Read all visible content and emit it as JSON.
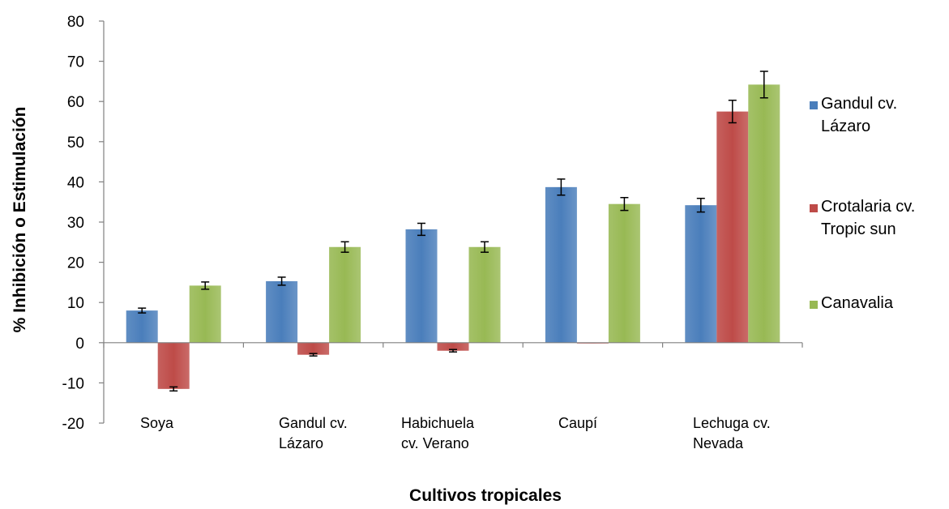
{
  "chart_data": {
    "type": "bar",
    "title": "",
    "xlabel": "Cultivos tropicales",
    "ylabel": "% Inhibición o Estimulación",
    "ylim": [
      -20,
      80
    ],
    "yticks": [
      -20,
      -10,
      0,
      10,
      20,
      30,
      40,
      50,
      60,
      70,
      80
    ],
    "grid": false,
    "legend_position": "right",
    "categories": [
      [
        "Soya"
      ],
      [
        "Gandul cv.",
        "Lázaro"
      ],
      [
        "Habichuela",
        "cv. Verano"
      ],
      [
        "Caupí"
      ],
      [
        "Lechuga cv.",
        "Nevada"
      ]
    ],
    "series": [
      {
        "name": [
          "Gandul cv.",
          "Lázaro"
        ],
        "color": "#4a7ebb",
        "values": [
          8,
          15.3,
          28.2,
          38.7,
          34.2
        ],
        "errors": [
          0.6,
          1.0,
          1.5,
          2.0,
          1.7
        ]
      },
      {
        "name": [
          "Crotalaria cv.",
          "Tropic sun"
        ],
        "color": "#be4b48",
        "values": [
          -11.5,
          -3,
          -2,
          0,
          57.5
        ],
        "errors": [
          0.5,
          0.3,
          0.3,
          0,
          2.8
        ]
      },
      {
        "name": [
          "Canavalia"
        ],
        "color": "#98b954",
        "values": [
          14.2,
          23.8,
          23.8,
          34.5,
          64.2
        ],
        "errors": [
          0.9,
          1.3,
          1.3,
          1.6,
          3.3
        ]
      }
    ]
  }
}
